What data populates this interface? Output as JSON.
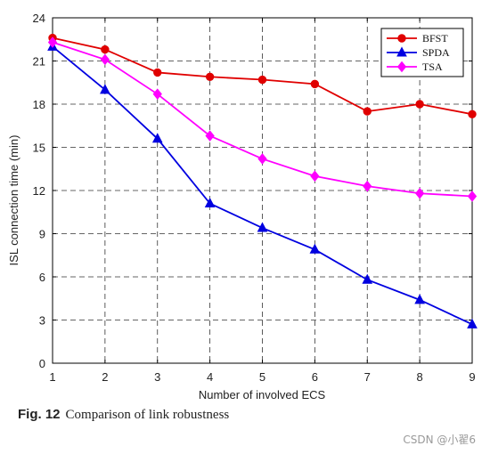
{
  "caption": {
    "fig_label": "Fig. 12",
    "text": "Comparison of link robustness"
  },
  "watermark": "CSDN @小翟6",
  "chart_data": {
    "type": "line",
    "title": "",
    "xlabel": "Number of involved ECS",
    "ylabel": "ISL connection time (min)",
    "xlim": [
      1,
      9
    ],
    "ylim": [
      0,
      24
    ],
    "xticks": [
      "1",
      "2",
      "3",
      "4",
      "5",
      "6",
      "7",
      "8",
      "9"
    ],
    "yticks": [
      "0",
      "3",
      "6",
      "9",
      "12",
      "15",
      "18",
      "21",
      "24"
    ],
    "grid": true,
    "legend_position": "top-right",
    "x": [
      1,
      2,
      3,
      4,
      5,
      6,
      7,
      8,
      9
    ],
    "series": [
      {
        "name": "BFST",
        "color": "#e00000",
        "marker": "circle",
        "values": [
          22.6,
          21.8,
          20.2,
          19.9,
          19.7,
          19.4,
          17.5,
          18.0,
          17.3
        ]
      },
      {
        "name": "SPDA",
        "color": "#0000e0",
        "marker": "triangle",
        "values": [
          22.0,
          19.0,
          15.6,
          11.1,
          9.4,
          7.9,
          5.8,
          4.4,
          2.7
        ]
      },
      {
        "name": "TSA",
        "color": "#ff00ff",
        "marker": "diamond",
        "values": [
          22.3,
          21.1,
          18.7,
          15.8,
          14.2,
          13.0,
          12.3,
          11.8,
          11.6
        ]
      }
    ]
  }
}
